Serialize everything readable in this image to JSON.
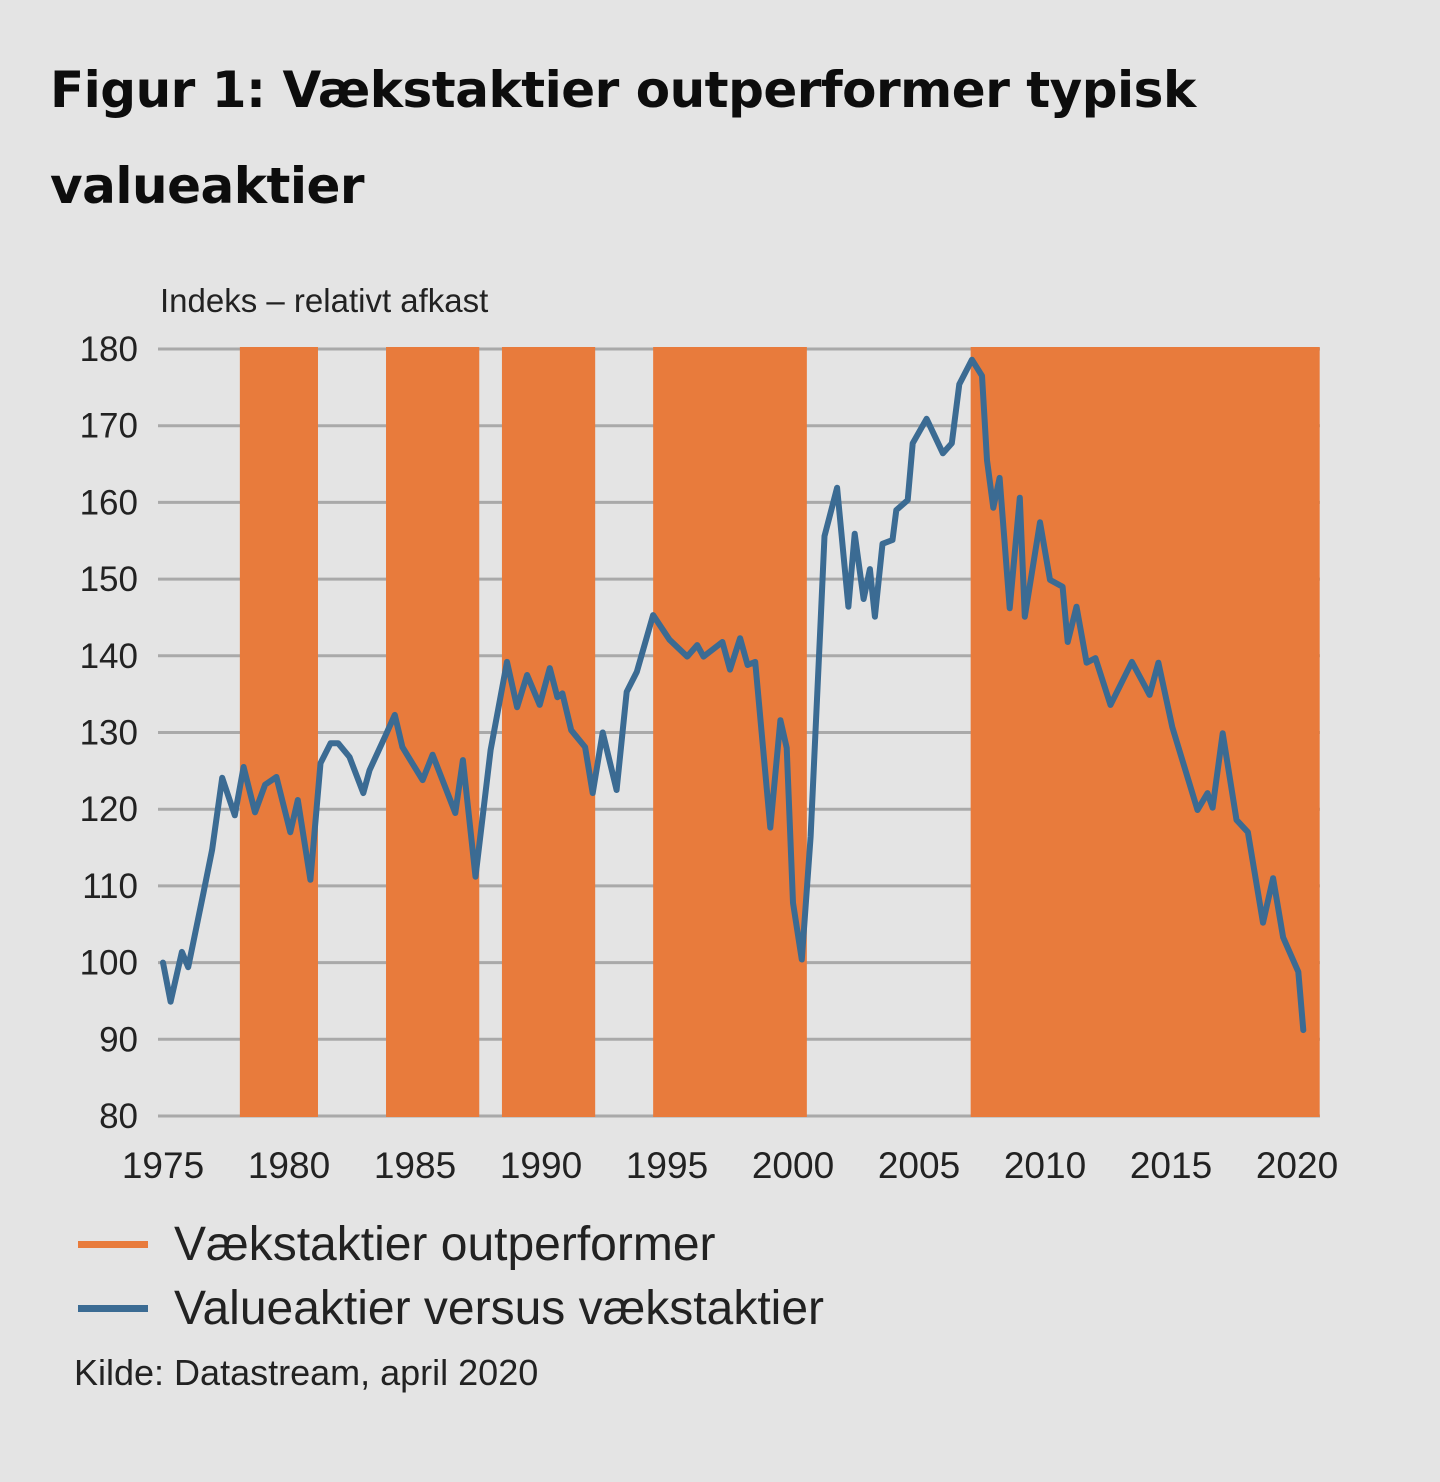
{
  "title": "Figur 1: Vækstaktier outperformer typisk valueaktier",
  "colors": {
    "background": "#e4e4e4",
    "band": "#e87b3c",
    "line": "#3b6b93",
    "grid": "#a9a9a9",
    "text": "#222222"
  },
  "legend": [
    {
      "label": "Vækstaktier outperformer",
      "color": "#e87b3c"
    },
    {
      "label": "Valueaktier versus vækstaktier",
      "color": "#3b6b93"
    }
  ],
  "source": "Kilde: Datastream, april 2020",
  "chart_data": {
    "type": "line",
    "title": "Figur 1: Vækstaktier outperformer typisk valueaktier",
    "xlabel": "",
    "ylabel": "Indeks – relativt afkast",
    "xlim": [
      1975,
      2020.9
    ],
    "ylim": [
      80,
      180
    ],
    "grid": true,
    "legend_position": "bottom-left",
    "x_ticks": [
      1975,
      1980,
      1985,
      1990,
      1995,
      2000,
      2005,
      2010,
      2015,
      2020
    ],
    "y_ticks": [
      80,
      90,
      100,
      110,
      120,
      130,
      140,
      150,
      160,
      170,
      180
    ],
    "shaded_periods": {
      "name": "Vækstaktier outperformer",
      "ranges": [
        [
          1978.05,
          1981.15
        ],
        [
          1983.85,
          1987.55
        ],
        [
          1988.45,
          1992.15
        ],
        [
          1994.45,
          2000.55
        ],
        [
          2007.05,
          2020.9
        ]
      ]
    },
    "series": [
      {
        "name": "Valueaktier versus vækstaktier",
        "x": [
          1975.0,
          1975.3,
          1975.75,
          1976.0,
          1976.6,
          1976.95,
          1977.35,
          1977.85,
          1978.2,
          1978.65,
          1979.05,
          1979.5,
          1980.05,
          1980.35,
          1980.85,
          1981.25,
          1981.65,
          1981.95,
          1982.4,
          1982.95,
          1983.2,
          1983.8,
          1984.2,
          1984.5,
          1985.3,
          1985.7,
          1986.6,
          1986.9,
          1987.4,
          1988.0,
          1988.65,
          1989.05,
          1989.45,
          1989.95,
          1990.35,
          1990.65,
          1990.85,
          1991.2,
          1991.75,
          1992.05,
          1992.45,
          1993.0,
          1993.4,
          1993.8,
          1994.45,
          1995.1,
          1995.8,
          1996.2,
          1996.45,
          1997.2,
          1997.5,
          1997.9,
          1998.2,
          1998.5,
          1999.1,
          1999.5,
          1999.75,
          2000.0,
          2000.35,
          2000.7,
          2001.1,
          2001.25,
          2001.75,
          2002.2,
          2002.45,
          2002.8,
          2003.05,
          2003.25,
          2003.55,
          2003.95,
          2004.1,
          2004.55,
          2004.75,
          2005.3,
          2005.95,
          2006.3,
          2006.6,
          2007.1,
          2007.5,
          2007.7,
          2007.95,
          2008.2,
          2008.6,
          2009.0,
          2009.2,
          2009.8,
          2010.2,
          2010.7,
          2010.9,
          2011.25,
          2011.65,
          2012.0,
          2012.6,
          2013.45,
          2014.15,
          2014.5,
          2015.05,
          2016.05,
          2016.45,
          2016.65,
          2017.05,
          2017.6,
          2018.05,
          2018.65,
          2019.05,
          2019.45,
          2020.05,
          2020.25
        ],
        "values": [
          100.0,
          94.9,
          101.4,
          99.4,
          109.0,
          114.7,
          124.1,
          119.2,
          125.5,
          119.6,
          123.2,
          124.2,
          117.0,
          121.2,
          110.8,
          126.0,
          128.6,
          128.6,
          126.8,
          122.1,
          125.1,
          129.4,
          132.3,
          128.1,
          123.8,
          127.1,
          119.5,
          126.4,
          111.2,
          127.7,
          139.2,
          133.3,
          137.5,
          133.6,
          138.4,
          134.6,
          135.1,
          130.3,
          128.1,
          122.1,
          130.0,
          122.5,
          135.3,
          137.9,
          145.3,
          142.1,
          139.9,
          141.4,
          139.9,
          141.8,
          138.2,
          142.3,
          138.8,
          139.2,
          117.6,
          131.6,
          128.0,
          107.8,
          100.4,
          116.4,
          144.7,
          155.6,
          161.9,
          146.4,
          155.9,
          147.4,
          151.3,
          145.1,
          154.6,
          155.1,
          159.0,
          160.3,
          167.7,
          170.9,
          166.4,
          167.7,
          175.4,
          178.6,
          176.5,
          165.5,
          159.3,
          163.2,
          146.2,
          160.6,
          145.1,
          157.4,
          149.9,
          149.0,
          141.8,
          146.4,
          139.1,
          139.7,
          133.6,
          139.2,
          134.9,
          139.1,
          130.7,
          119.9,
          122.1,
          120.2,
          129.9,
          118.6,
          117.0,
          105.2,
          111.0,
          103.3,
          98.8,
          91.2
        ]
      }
    ]
  }
}
